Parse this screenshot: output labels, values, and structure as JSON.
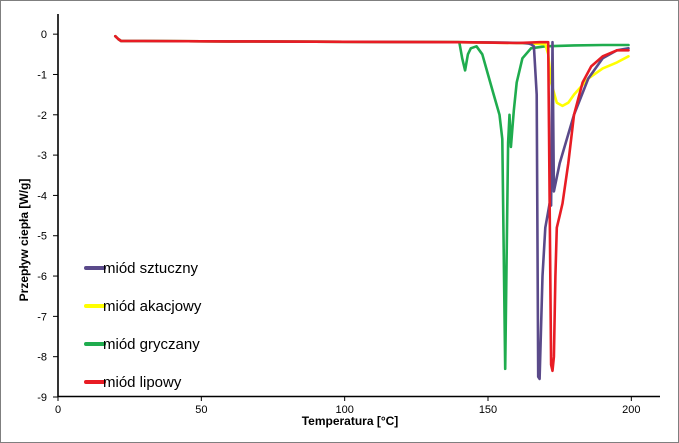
{
  "chart_data": {
    "type": "line",
    "title": "",
    "xlabel": "Temperatura [°C]",
    "ylabel": "Przepływ ciepła [W/g]",
    "xlim": [
      0,
      210
    ],
    "ylim": [
      -9,
      0.5
    ],
    "xticks": [
      0,
      50,
      100,
      150,
      200
    ],
    "yticks": [
      0,
      -1,
      -2,
      -3,
      -4,
      -5,
      -6,
      -7,
      -8,
      -9
    ],
    "grid": false,
    "legend_position": "lower-left",
    "series": [
      {
        "name": "miód sztuczny",
        "color": "#5a4a8a",
        "x": [
          20,
          21,
          22,
          30,
          60,
          100,
          140,
          155,
          162,
          164,
          165,
          166,
          167,
          167.5,
          168,
          169,
          170,
          171,
          171.5,
          172,
          172.5,
          173,
          175,
          180,
          185,
          190,
          195,
          199
        ],
        "y": [
          -0.05,
          -0.12,
          -0.17,
          -0.17,
          -0.18,
          -0.19,
          -0.2,
          -0.21,
          -0.22,
          -0.23,
          -0.25,
          -0.3,
          -1.5,
          -8.5,
          -8.55,
          -6.0,
          -4.8,
          -4.4,
          -4.2,
          -4.25,
          -0.2,
          -3.9,
          -3.2,
          -2.0,
          -1.1,
          -0.6,
          -0.4,
          -0.35
        ]
      },
      {
        "name": "miód akacjowy",
        "color": "#ffff00",
        "x": [
          20,
          21,
          22,
          30,
          60,
          100,
          140,
          160,
          170,
          171,
          172,
          174,
          176,
          178,
          180,
          185,
          190,
          195,
          199
        ],
        "y": [
          -0.05,
          -0.12,
          -0.17,
          -0.17,
          -0.18,
          -0.19,
          -0.2,
          -0.22,
          -0.25,
          -0.5,
          -1.2,
          -1.7,
          -1.78,
          -1.7,
          -1.5,
          -1.1,
          -0.85,
          -0.7,
          -0.55
        ]
      },
      {
        "name": "miód gryczany",
        "color": "#1fac4e",
        "x": [
          20,
          21,
          22,
          30,
          60,
          100,
          140,
          141,
          142,
          143,
          144,
          146,
          148,
          150,
          152,
          154,
          155,
          156,
          157,
          157.5,
          158,
          159,
          160,
          162,
          165,
          170,
          180,
          190,
          199
        ],
        "y": [
          -0.05,
          -0.12,
          -0.17,
          -0.17,
          -0.18,
          -0.19,
          -0.2,
          -0.6,
          -0.9,
          -0.5,
          -0.35,
          -0.3,
          -0.5,
          -1.0,
          -1.5,
          -2.0,
          -2.6,
          -8.3,
          -2.7,
          -2.0,
          -2.8,
          -1.9,
          -1.2,
          -0.6,
          -0.35,
          -0.3,
          -0.28,
          -0.27,
          -0.27
        ]
      },
      {
        "name": "miód lipowy",
        "color": "#e81c24",
        "x": [
          20,
          21,
          22,
          30,
          60,
          100,
          140,
          150,
          160,
          168,
          171,
          172,
          172.5,
          173,
          173.5,
          174,
          175,
          176,
          178,
          180,
          183,
          186,
          190,
          195,
          199
        ],
        "y": [
          -0.05,
          -0.12,
          -0.17,
          -0.17,
          -0.18,
          -0.19,
          -0.2,
          -0.21,
          -0.22,
          -0.2,
          -0.2,
          -8.2,
          -8.35,
          -8.0,
          -6.0,
          -4.8,
          -4.5,
          -4.2,
          -3.2,
          -2.0,
          -1.2,
          -0.8,
          -0.55,
          -0.4,
          -0.4
        ]
      }
    ]
  }
}
